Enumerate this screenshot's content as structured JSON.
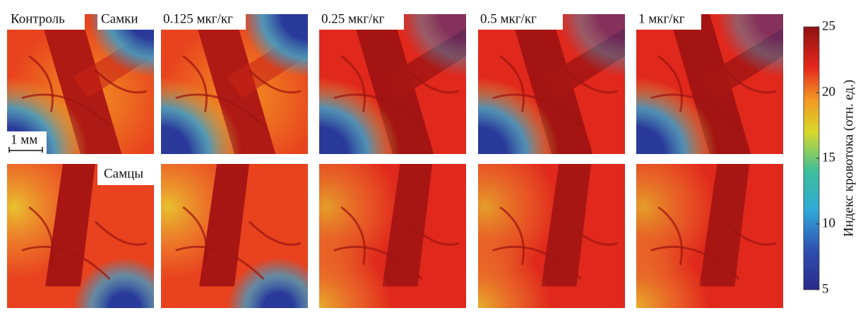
{
  "panels": {
    "column_labels": [
      "Контроль",
      "0.125 мкг/кг",
      "0.25 мкг/кг",
      "0.5 мкг/кг",
      "1 мкг/кг"
    ],
    "row_labels": [
      "Самки",
      "Самцы"
    ],
    "scale_bar": "1 мм"
  },
  "colorbar": {
    "label": "Индекс кровотока (отн. ед.)",
    "lim": [
      5,
      25
    ],
    "ticks": [
      5,
      10,
      15,
      20,
      25
    ]
  }
}
